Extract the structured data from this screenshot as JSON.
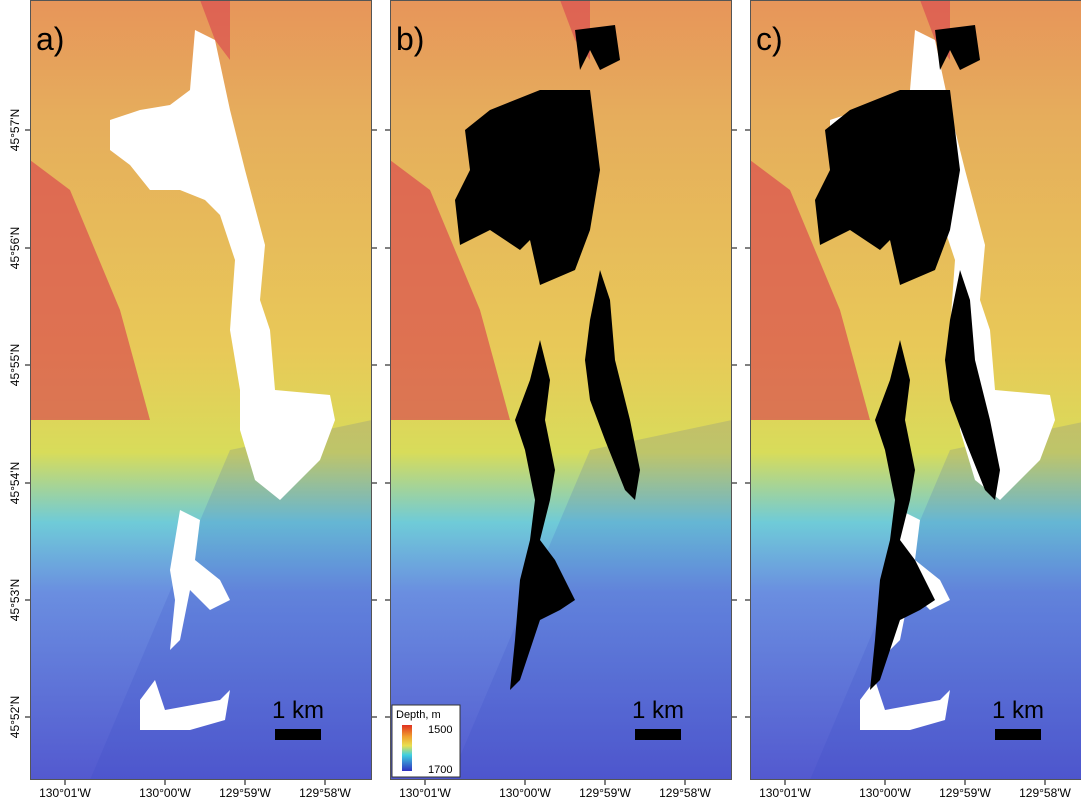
{
  "panels": [
    {
      "label": "a)",
      "x_ticks": [
        "130°01'W",
        "130°00'W",
        "129°59'W",
        "129°58'W"
      ],
      "scale_label": "1 km"
    },
    {
      "label": "b)",
      "x_ticks": [
        "130°01'W",
        "130°00'W",
        "129°59'W",
        "129°58'W"
      ],
      "scale_label": "1 km"
    },
    {
      "label": "c)",
      "x_ticks": [
        "130°01'W",
        "130°00'W",
        "129°59'W",
        "129°58'W"
      ],
      "scale_label": "1 km"
    }
  ],
  "y_ticks": [
    "45°57'N",
    "45°56'N",
    "45°55'N",
    "45°54'N",
    "45°53'N",
    "45°52'N"
  ],
  "legend": {
    "title": "Depth, m",
    "top": "1500",
    "bottom": "1700"
  }
}
